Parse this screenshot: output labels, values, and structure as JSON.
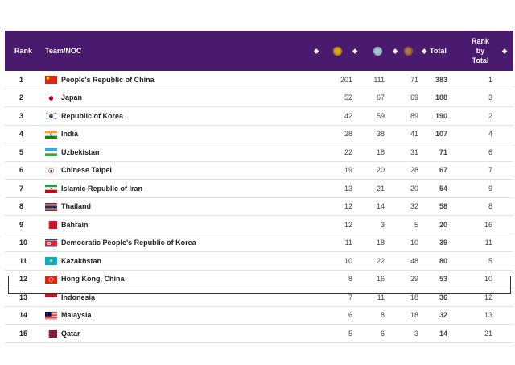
{
  "header": {
    "rank": "Rank",
    "team": "Team/NOC",
    "total": "Total",
    "rank_by_total": [
      "Rank",
      "by",
      "Total"
    ],
    "sort_glyph": "⬥",
    "medals": [
      "gold-medal-icon",
      "silver-medal-icon",
      "bronze-medal-icon"
    ]
  },
  "colors": {
    "header_bg": "#4a1a6e",
    "gold": "#d4a72c",
    "silver": "#a9c4d6",
    "bronze": "#b07a50"
  },
  "rows": [
    {
      "rank": "1",
      "team": "People's Republic of China",
      "gold": "201",
      "silver": "111",
      "bronze": "71",
      "total": "383",
      "rbt": "1",
      "flag": "china"
    },
    {
      "rank": "2",
      "team": "Japan",
      "gold": "52",
      "silver": "67",
      "bronze": "69",
      "total": "188",
      "rbt": "3",
      "flag": "japan"
    },
    {
      "rank": "3",
      "team": "Republic of Korea",
      "gold": "42",
      "silver": "59",
      "bronze": "89",
      "total": "190",
      "rbt": "2",
      "flag": "korea"
    },
    {
      "rank": "4",
      "team": "India",
      "gold": "28",
      "silver": "38",
      "bronze": "41",
      "total": "107",
      "rbt": "4",
      "flag": "india"
    },
    {
      "rank": "5",
      "team": "Uzbekistan",
      "gold": "22",
      "silver": "18",
      "bronze": "31",
      "total": "71",
      "rbt": "6",
      "flag": "uzbekistan"
    },
    {
      "rank": "6",
      "team": "Chinese Taipei",
      "gold": "19",
      "silver": "20",
      "bronze": "28",
      "total": "67",
      "rbt": "7",
      "flag": "taipei"
    },
    {
      "rank": "7",
      "team": "Islamic Republic of Iran",
      "gold": "13",
      "silver": "21",
      "bronze": "20",
      "total": "54",
      "rbt": "9",
      "flag": "iran"
    },
    {
      "rank": "8",
      "team": "Thailand",
      "gold": "12",
      "silver": "14",
      "bronze": "32",
      "total": "58",
      "rbt": "8",
      "flag": "thailand"
    },
    {
      "rank": "9",
      "team": "Bahrain",
      "gold": "12",
      "silver": "3",
      "bronze": "5",
      "total": "20",
      "rbt": "16",
      "flag": "bahrain"
    },
    {
      "rank": "10",
      "team": "Democratic People's Republic of Korea",
      "gold": "11",
      "silver": "18",
      "bronze": "10",
      "total": "39",
      "rbt": "11",
      "flag": "dprk"
    },
    {
      "rank": "11",
      "team": "Kazakhstan",
      "gold": "10",
      "silver": "22",
      "bronze": "48",
      "total": "80",
      "rbt": "5",
      "flag": "kazakhstan"
    },
    {
      "rank": "12",
      "team": "Hong Kong, China",
      "gold": "8",
      "silver": "16",
      "bronze": "29",
      "total": "53",
      "rbt": "10",
      "flag": "hongkong"
    },
    {
      "rank": "13",
      "team": "Indonesia",
      "gold": "7",
      "silver": "11",
      "bronze": "18",
      "total": "36",
      "rbt": "12",
      "flag": "indonesia"
    },
    {
      "rank": "14",
      "team": "Malaysia",
      "gold": "6",
      "silver": "8",
      "bronze": "18",
      "total": "32",
      "rbt": "13",
      "flag": "malaysia"
    },
    {
      "rank": "15",
      "team": "Qatar",
      "gold": "5",
      "silver": "6",
      "bronze": "3",
      "total": "14",
      "rbt": "21",
      "flag": "qatar"
    }
  ]
}
